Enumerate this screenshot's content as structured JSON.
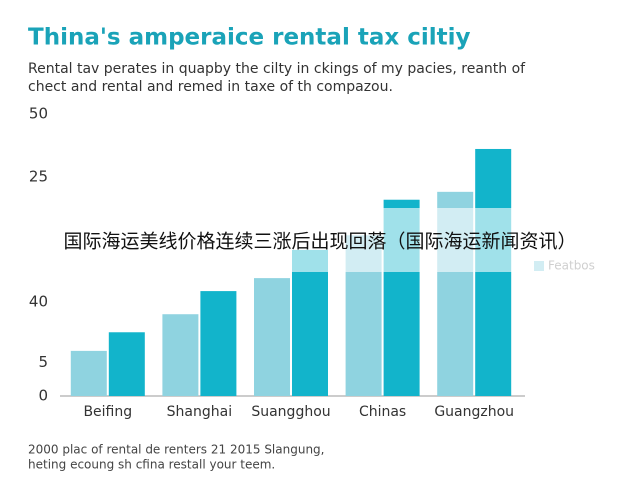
{
  "chart_data": {
    "type": "bar",
    "title": "Thina's amperaice rental tax ciltiy",
    "subtitle": [
      "Rental tav perates in quapby the cilty in ckings of my pacies, reanth of",
      "chect and rental and remed in taxe of th compazou."
    ],
    "footnote": [
      "2000 plac of rental de renters 21 2015 Slangung,",
      "heting ecoung sh cfina restall your teem."
    ],
    "overlay_text": "国际海运美线价格连续三涨后出现回落（国际海运新闻资讯）",
    "categories": [
      "Beifing",
      "Shanghai",
      "Suangghou",
      "Chinas",
      "Guangzhou"
    ],
    "series": [
      {
        "name": "Featbos",
        "color": "#8fd3e0",
        "values": [
          8.0,
          14.5,
          20.9,
          28.5,
          36.2
        ]
      },
      {
        "color": "#12b4cb",
        "values": [
          11.3,
          18.6,
          25.9,
          34.8,
          43.8
        ]
      }
    ],
    "ylim": [
      0,
      50
    ],
    "yticks": [
      0,
      {
        "value": 5.9,
        "label": "5"
      },
      {
        "value": 16.7,
        "label": "40"
      },
      {
        "value": 38.8,
        "label": "25"
      },
      50
    ],
    "grid": false,
    "legend": "right"
  }
}
